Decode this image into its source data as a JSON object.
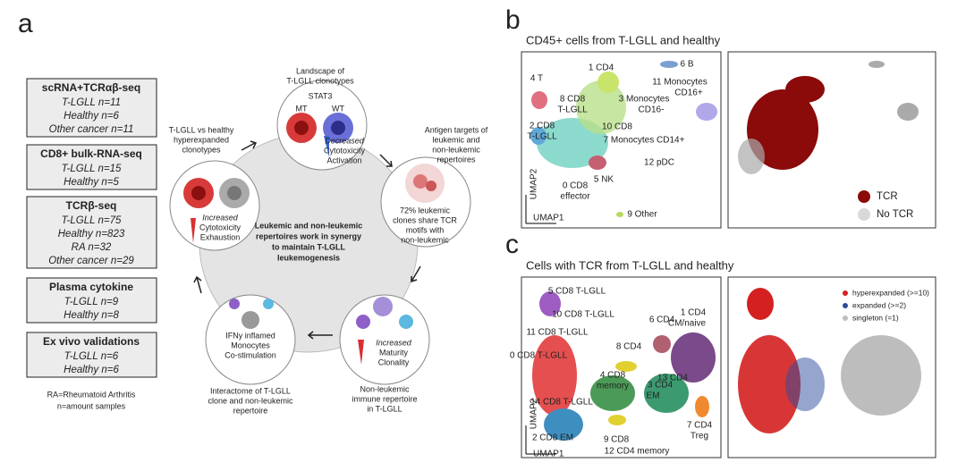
{
  "panel_a": {
    "label": "a",
    "boxes": [
      {
        "title": "scRNA+TCRαβ-seq",
        "lines": [
          "T-LGLL n=11",
          "Healthy n=6",
          "Other cancer n=11"
        ]
      },
      {
        "title": "CD8+ bulk-RNA-seq",
        "lines": [
          "T-LGLL n=15",
          "Healthy  n=5"
        ]
      },
      {
        "title": "TCRβ-seq",
        "lines": [
          "T-LGLL n=75",
          "Healthy n=823",
          "RA n=32",
          "Other cancer n=29"
        ]
      },
      {
        "title": "Plasma cytokine",
        "lines": [
          "T-LGLL n=9",
          "Healthy n=8"
        ]
      },
      {
        "title": "Ex vivo validations",
        "lines": [
          "T-LGLL n=6",
          "Healthy n=6"
        ]
      }
    ],
    "footnote": [
      "RA=Rheumatoid Arthritis",
      "n=amount samples"
    ],
    "center": [
      "Leukemic and non-leukemic",
      "repertoires work in synergy",
      "to maintain T-LGLL",
      "leukemogenesis"
    ],
    "nodes": [
      {
        "caption": [
          "Landscape of",
          "T-LGLL clonotypes"
        ],
        "gene": "STAT3",
        "alleles": [
          "MT",
          "WT"
        ],
        "inside": [
          "Decreased",
          "Cytotoxicity",
          "Activation"
        ]
      },
      {
        "caption": [
          "Antigen targets of",
          "leukemic and",
          "non-leukemic",
          "repertoires"
        ],
        "inside": [
          "72% leukemic",
          "clones share TCR",
          "motifs with",
          "non-leukemic"
        ]
      },
      {
        "caption": [
          "Non-leukemic",
          "immune repertoire",
          "in T-LGLL"
        ],
        "inside": [
          "Increased",
          "Maturity",
          "Clonality"
        ]
      },
      {
        "caption": [
          "Interactome of T-LGLL",
          "clone and non-leukemic",
          "repertoire"
        ],
        "inside": [
          "IFNy inflamed",
          "Monocytes",
          "Co-stimulation"
        ]
      },
      {
        "caption": [
          "T-LGLL vs healthy",
          "hyperexpanded",
          "clonotypes"
        ],
        "inside": [
          "Increased",
          "Cytotoxicity",
          "Exhaustion"
        ]
      }
    ]
  },
  "panel_b": {
    "label": "b",
    "title": "CD45+ cells from T-LGLL and healthy",
    "clusters": [
      "1 CD4",
      "6 B",
      "4 T",
      "11 Monocytes",
      "CD16+",
      "8 CD8",
      "T-LGLL",
      "3 Monocytes",
      "CD16-",
      "2 CD8",
      "T-LGLL",
      "10 CD8",
      "7 Monocytes CD14+",
      "12 pDC",
      "0 CD8",
      "effector",
      "5 NK",
      "9 Other"
    ],
    "axes": [
      "UMAP1",
      "UMAP2"
    ],
    "legend": [
      {
        "name": "TCR",
        "color": "#8b0a0a"
      },
      {
        "name": "No TCR",
        "color": "#d9d9d9"
      }
    ]
  },
  "panel_c": {
    "label": "c",
    "title": "Cells with TCR from T-LGLL and healthy",
    "clusters": [
      "5 CD8 T-LGLL",
      "10 CD8 T-LGLL",
      "1 CD4",
      "CM/naive",
      "6 CD4",
      "11 CD8 T-LGLL",
      "8 CD4",
      "0 CD8 T-LGLL",
      "4 CD8",
      "memory",
      "13 CD4",
      "3 CD4",
      "EM",
      "14 CD8 T-LGLL",
      "7 CD4",
      "Treg",
      "2 CD8 EM",
      "9 CD8",
      "12 CD4 memory"
    ],
    "axes": [
      "UMAP1",
      "UMAP2"
    ],
    "legend": [
      {
        "name": "hyperexpanded (>=10)",
        "color": "#d42020"
      },
      {
        "name": "expanded (>=2)",
        "color": "#2b4c9b"
      },
      {
        "name": "singleton (=1)",
        "color": "#bdbdbd"
      }
    ]
  }
}
